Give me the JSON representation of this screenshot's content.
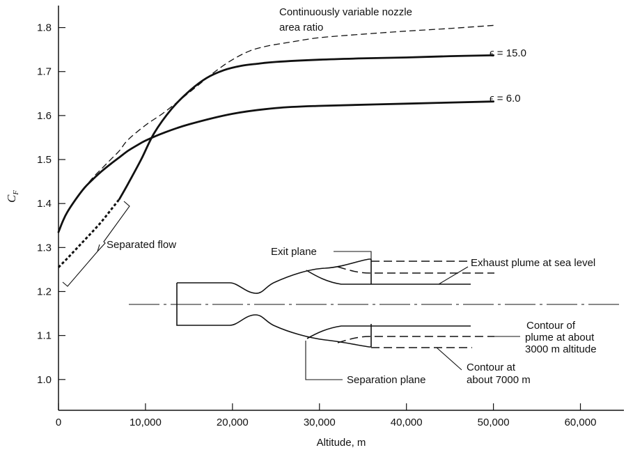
{
  "chart_data": {
    "type": "line",
    "title": "",
    "xlabel": "Altitude, m",
    "ylabel": "C",
    "ylabel_subscript": "F",
    "xlim": [
      0,
      65000
    ],
    "ylim": [
      0.93,
      1.85
    ],
    "grid": false,
    "x_ticks": [
      {
        "value": 0,
        "label": "0"
      },
      {
        "value": 10000,
        "label": "10,000"
      },
      {
        "value": 20000,
        "label": "20,000"
      },
      {
        "value": 30000,
        "label": "30,000"
      },
      {
        "value": 40000,
        "label": "40,000"
      },
      {
        "value": 50000,
        "label": "50,000"
      },
      {
        "value": 60000,
        "label": "60,000"
      }
    ],
    "y_ticks": [
      {
        "value": 1.0,
        "label": "1.0"
      },
      {
        "value": 1.1,
        "label": "1.1"
      },
      {
        "value": 1.2,
        "label": "1.2"
      },
      {
        "value": 1.3,
        "label": "1.3"
      },
      {
        "value": 1.4,
        "label": "1.4"
      },
      {
        "value": 1.5,
        "label": "1.5"
      },
      {
        "value": 1.6,
        "label": "1.6"
      },
      {
        "value": 1.7,
        "label": "1.7"
      },
      {
        "value": 1.8,
        "label": "1.8"
      }
    ],
    "series": [
      {
        "name": "ϵ = 15.0",
        "style": "solid",
        "x": [
          7000,
          8000,
          9500,
          11000,
          13000,
          15000,
          17000,
          19000,
          21000,
          23000,
          25000,
          30000,
          35000,
          40000,
          45000,
          50000
        ],
        "values": [
          1.41,
          1.445,
          1.5,
          1.56,
          1.615,
          1.655,
          1.685,
          1.703,
          1.713,
          1.718,
          1.722,
          1.727,
          1.73,
          1.732,
          1.735,
          1.737
        ]
      },
      {
        "name": "ϵ = 6.0",
        "style": "solid",
        "x": [
          0,
          500,
          1000,
          2000,
          3000,
          4000,
          5000,
          6000,
          7000,
          8000,
          9000,
          10000,
          12000,
          15000,
          20000,
          25000,
          30000,
          40000,
          50000
        ],
        "values": [
          1.335,
          1.36,
          1.38,
          1.41,
          1.436,
          1.456,
          1.474,
          1.49,
          1.505,
          1.52,
          1.532,
          1.543,
          1.56,
          1.58,
          1.604,
          1.617,
          1.622,
          1.627,
          1.632
        ]
      },
      {
        "name": "Continuously variable nozzle area ratio",
        "style": "dashed",
        "x": [
          0,
          1000,
          2000,
          3000,
          4000,
          5000,
          6000,
          7000,
          8000,
          10000,
          12000,
          14000,
          16000,
          18000,
          20000,
          22000,
          24000,
          27000,
          30000,
          35000,
          40000,
          45000,
          50000
        ],
        "values": [
          1.335,
          1.38,
          1.41,
          1.436,
          1.46,
          1.48,
          1.5,
          1.52,
          1.545,
          1.578,
          1.605,
          1.636,
          1.668,
          1.7,
          1.727,
          1.747,
          1.758,
          1.768,
          1.777,
          1.785,
          1.792,
          1.798,
          1.805
        ]
      },
      {
        "name": "Separated flow",
        "style": "dotted",
        "x": [
          0,
          1000,
          2000,
          3000,
          4000,
          5000,
          6000,
          7000
        ],
        "values": [
          1.255,
          1.275,
          1.296,
          1.317,
          1.338,
          1.36,
          1.385,
          1.41
        ]
      }
    ],
    "annotations": {
      "variable_line1": "Continuously variable nozzle",
      "variable_line2": "area ratio",
      "eps15": "ϵ = 15.0",
      "eps6": "ϵ = 6.0",
      "separated": "Separated flow",
      "exit_plane": "Exit plane",
      "exhaust": "Exhaust plume at sea level",
      "contour3000_line1": "Contour of",
      "contour3000_line2": "plume at about",
      "contour3000_line3": "3000 m altitude",
      "contour7000_line1": "Contour at",
      "contour7000_line2": "about 7000 m",
      "separation_plane": "Separation plane"
    }
  }
}
